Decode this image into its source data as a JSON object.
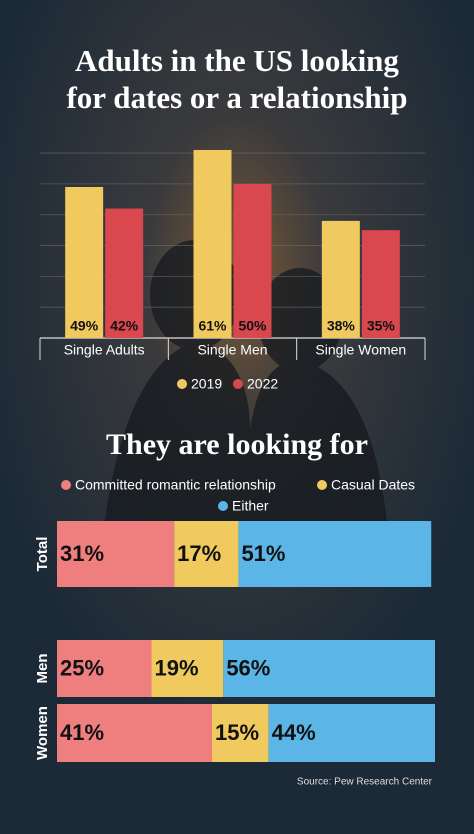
{
  "chart_data": [
    {
      "type": "bar",
      "title": "Adults in the US looking for dates or a relationship",
      "categories": [
        "Single Adults",
        "Single Men",
        "Single Women"
      ],
      "series": [
        {
          "name": "2019",
          "color": "#f0ca5e",
          "values": [
            49,
            61,
            38
          ],
          "value_labels": [
            "49%",
            "61%",
            "38%"
          ]
        },
        {
          "name": "2022",
          "color": "#d9474f",
          "values": [
            42,
            50,
            35
          ],
          "value_labels": [
            "42%",
            "50%",
            "35%"
          ]
        }
      ],
      "ylim": [
        0,
        61
      ],
      "yticks": [
        0,
        10,
        20,
        30,
        40,
        50,
        60
      ],
      "grid": true,
      "legend": "bottom"
    },
    {
      "type": "stacked-bar-horizontal",
      "title": "They are looking for",
      "categories": [
        "Total",
        "Men",
        "Women"
      ],
      "series": [
        {
          "name": "Committed romantic relationship",
          "color": "#ef7f7f",
          "values": [
            31,
            25,
            41
          ],
          "value_labels": [
            "31%",
            "25%",
            "41%"
          ]
        },
        {
          "name": "Casual Dates",
          "color": "#f0ca5e",
          "values": [
            17,
            19,
            15
          ],
          "value_labels": [
            "17%",
            "19%",
            "15%"
          ]
        },
        {
          "name": "Either",
          "color": "#5bb5e6",
          "values": [
            51,
            56,
            44
          ],
          "value_labels": [
            "51%",
            "56%",
            "44%"
          ]
        }
      ],
      "xlim": [
        0,
        100
      ],
      "legend": "top"
    }
  ],
  "source": "Source: Pew Research Center"
}
